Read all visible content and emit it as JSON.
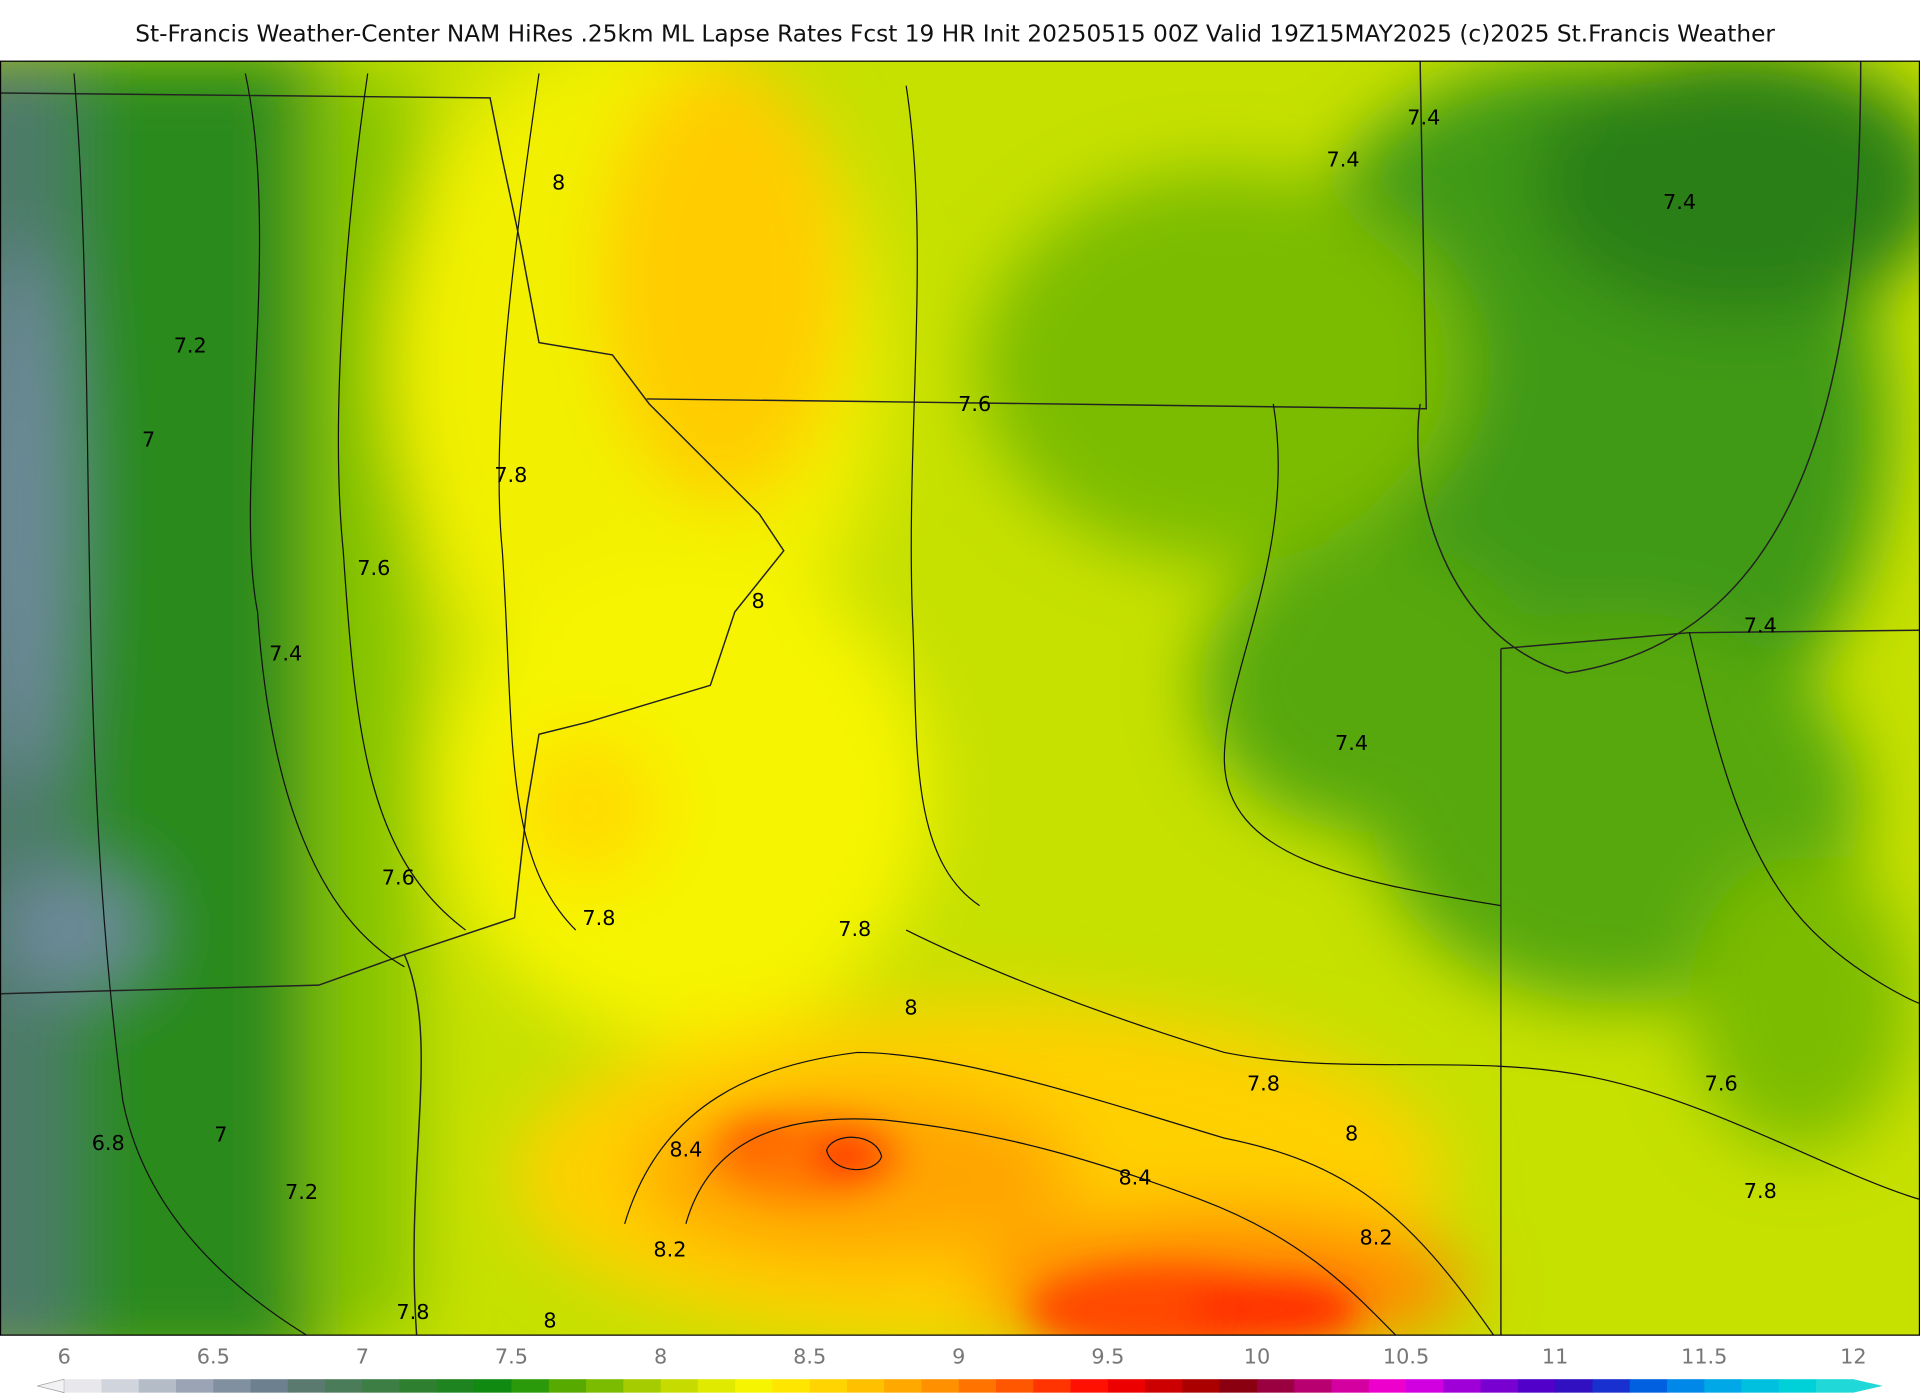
{
  "header": {
    "title": "St-Francis Weather-Center NAM HiRes .25km ML Lapse Rates  Fcst 19 HR Init 20250515 00Z  Valid 19Z15MAY2025    (c)2025 St.Francis Weather"
  },
  "contour_labels": [
    "7.4",
    "7.4",
    "7.4",
    "8",
    "7.2",
    "7",
    "7.6",
    "7.8",
    "7.6",
    "7.4",
    "8",
    "7.4",
    "7.4",
    "7.6",
    "7.8",
    "7.8",
    "8",
    "7.8",
    "7.6",
    "8",
    "6.8",
    "7",
    "8.4",
    "8.4",
    "7.2",
    "7.8",
    "8.2",
    "8.2",
    "7.8",
    "8"
  ],
  "colorbar": {
    "ticks": [
      "6",
      "6.5",
      "7",
      "7.5",
      "8",
      "8.5",
      "9",
      "9.5",
      "10",
      "10.5",
      "11",
      "11.5",
      "12"
    ]
  }
}
